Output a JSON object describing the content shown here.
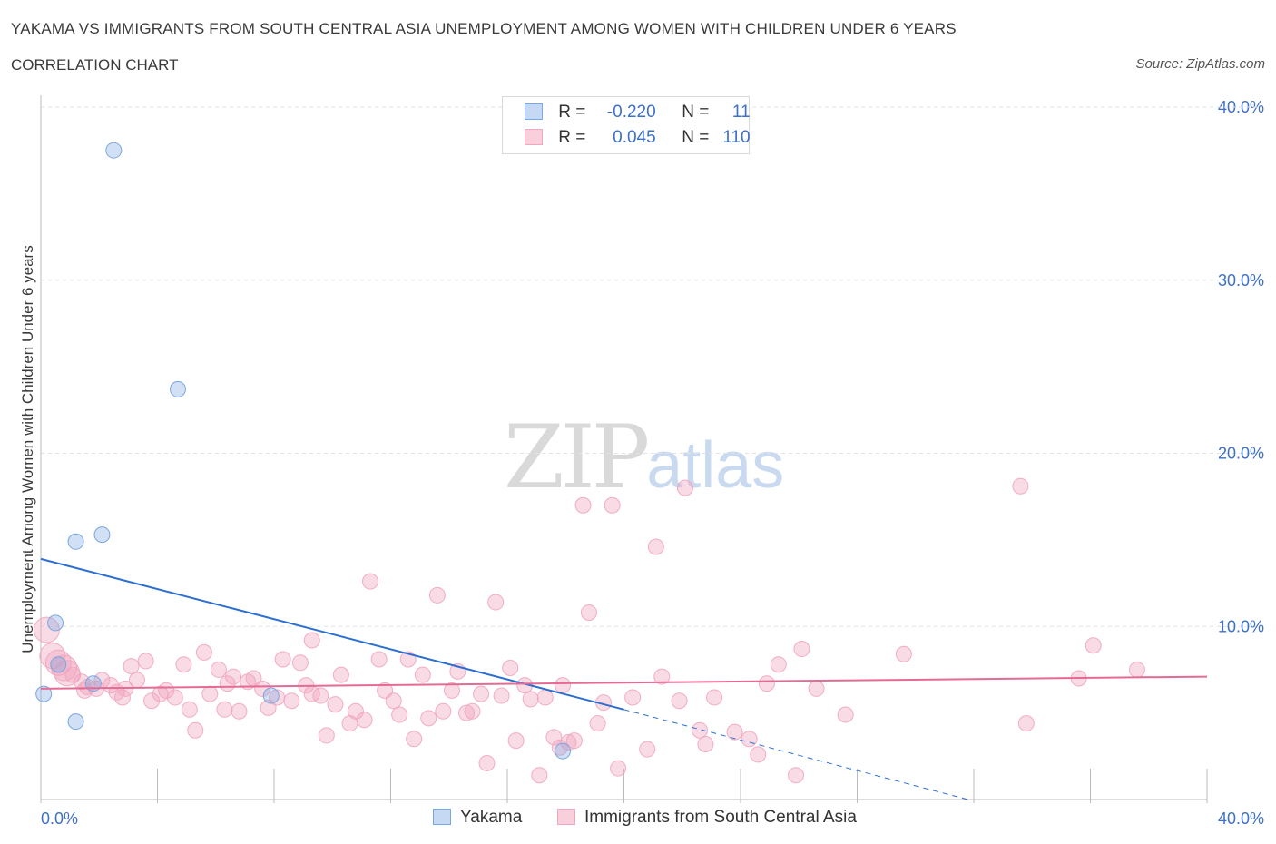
{
  "title": "YAKAMA VS IMMIGRANTS FROM SOUTH CENTRAL ASIA UNEMPLOYMENT AMONG WOMEN WITH CHILDREN UNDER 6 YEARS",
  "subtitle": "CORRELATION CHART",
  "source": "Source: ZipAtlas.com",
  "watermark": {
    "zip": "ZIP",
    "atlas": "atlas"
  },
  "legend": {
    "rows": [
      {
        "r_label": "R =",
        "r_value": "-0.220",
        "n_label": "N =",
        "n_value": "11"
      },
      {
        "r_label": "R =",
        "r_value": "0.045",
        "n_label": "N =",
        "n_value": "110"
      }
    ]
  },
  "chart_data": {
    "type": "scatter",
    "xlabel": "",
    "ylabel": "Unemployment Among Women with Children Under 6 years",
    "xlim": [
      0,
      40
    ],
    "ylim": [
      0,
      40
    ],
    "x_tick_labels": [
      "0.0%",
      "40.0%"
    ],
    "y_ticks": [
      10,
      20,
      30,
      40
    ],
    "y_tick_labels": [
      "10.0%",
      "20.0%",
      "30.0%",
      "40.0%"
    ],
    "grid": true,
    "legend_position": "bottom",
    "colors": {
      "yakama": "#7ba7e0",
      "immigrants": "#f0a6be",
      "yakama_line": "#2c6fd1",
      "immigrants_line": "#e56a95",
      "tick_label": "#3d70c9"
    },
    "series": [
      {
        "name": "Yakama",
        "points": [
          [
            0.1,
            6.1
          ],
          [
            0.5,
            10.2
          ],
          [
            0.6,
            7.8
          ],
          [
            1.2,
            14.9
          ],
          [
            1.2,
            4.5
          ],
          [
            1.8,
            6.7
          ],
          [
            2.1,
            15.3
          ],
          [
            2.5,
            37.5
          ],
          [
            4.7,
            23.7
          ],
          [
            7.9,
            6.0
          ],
          [
            17.9,
            2.8
          ]
        ],
        "trend": {
          "x0": 0,
          "y0": 13.9,
          "x1": 20,
          "y1": 5.2,
          "dash_x1": 31.8,
          "dash_y1": 0
        }
      },
      {
        "name": "Immigrants from South Central Asia",
        "points": [
          [
            0.2,
            9.8
          ],
          [
            0.4,
            8.3
          ],
          [
            0.6,
            7.9
          ],
          [
            0.8,
            7.6
          ],
          [
            1.1,
            7.2
          ],
          [
            1.4,
            6.8
          ],
          [
            1.6,
            6.5
          ],
          [
            1.9,
            6.4
          ],
          [
            2.1,
            6.9
          ],
          [
            2.4,
            6.6
          ],
          [
            2.6,
            6.2
          ],
          [
            2.8,
            5.9
          ],
          [
            3.1,
            7.7
          ],
          [
            3.3,
            6.9
          ],
          [
            3.6,
            8.0
          ],
          [
            3.8,
            5.7
          ],
          [
            4.1,
            6.1
          ],
          [
            4.3,
            6.3
          ],
          [
            4.6,
            5.9
          ],
          [
            4.9,
            7.8
          ],
          [
            5.1,
            5.2
          ],
          [
            5.3,
            4.0
          ],
          [
            5.6,
            8.5
          ],
          [
            5.8,
            6.1
          ],
          [
            6.1,
            7.5
          ],
          [
            6.3,
            5.2
          ],
          [
            6.6,
            7.1
          ],
          [
            6.8,
            5.1
          ],
          [
            7.1,
            6.8
          ],
          [
            7.3,
            7.0
          ],
          [
            7.6,
            6.4
          ],
          [
            7.8,
            5.3
          ],
          [
            8.1,
            5.9
          ],
          [
            8.3,
            8.1
          ],
          [
            8.6,
            5.7
          ],
          [
            8.9,
            7.9
          ],
          [
            9.1,
            6.6
          ],
          [
            9.3,
            9.2
          ],
          [
            9.6,
            6.0
          ],
          [
            9.8,
            3.7
          ],
          [
            10.1,
            5.5
          ],
          [
            10.3,
            7.2
          ],
          [
            10.6,
            4.4
          ],
          [
            10.8,
            5.1
          ],
          [
            11.1,
            4.6
          ],
          [
            11.3,
            12.6
          ],
          [
            11.6,
            8.1
          ],
          [
            11.8,
            6.3
          ],
          [
            12.1,
            5.7
          ],
          [
            12.3,
            4.9
          ],
          [
            12.6,
            8.1
          ],
          [
            12.8,
            3.5
          ],
          [
            13.1,
            7.2
          ],
          [
            13.3,
            4.7
          ],
          [
            13.6,
            11.8
          ],
          [
            13.8,
            5.1
          ],
          [
            14.1,
            6.3
          ],
          [
            14.3,
            7.4
          ],
          [
            14.6,
            5.0
          ],
          [
            14.8,
            5.1
          ],
          [
            15.1,
            6.1
          ],
          [
            15.3,
            2.1
          ],
          [
            15.6,
            11.4
          ],
          [
            15.8,
            6.0
          ],
          [
            16.1,
            7.6
          ],
          [
            16.3,
            3.4
          ],
          [
            16.6,
            6.6
          ],
          [
            16.8,
            5.8
          ],
          [
            17.1,
            1.4
          ],
          [
            17.3,
            5.9
          ],
          [
            17.6,
            3.6
          ],
          [
            17.8,
            3.0
          ],
          [
            17.9,
            6.6
          ],
          [
            18.1,
            3.3
          ],
          [
            18.3,
            3.4
          ],
          [
            18.6,
            17.0
          ],
          [
            18.8,
            10.8
          ],
          [
            19.1,
            4.4
          ],
          [
            19.3,
            5.6
          ],
          [
            19.6,
            17.0
          ],
          [
            19.8,
            1.8
          ],
          [
            20.3,
            5.9
          ],
          [
            20.8,
            2.9
          ],
          [
            21.1,
            14.6
          ],
          [
            21.3,
            7.1
          ],
          [
            21.9,
            5.7
          ],
          [
            22.1,
            18.0
          ],
          [
            22.6,
            4.0
          ],
          [
            22.8,
            3.2
          ],
          [
            23.1,
            5.9
          ],
          [
            23.8,
            3.9
          ],
          [
            24.3,
            3.5
          ],
          [
            24.6,
            2.6
          ],
          [
            24.9,
            6.7
          ],
          [
            25.3,
            7.8
          ],
          [
            25.9,
            1.4
          ],
          [
            26.1,
            8.7
          ],
          [
            26.6,
            6.4
          ],
          [
            27.6,
            4.9
          ],
          [
            29.6,
            8.4
          ],
          [
            33.6,
            18.1
          ],
          [
            33.8,
            4.4
          ],
          [
            35.6,
            7.0
          ],
          [
            36.1,
            8.9
          ],
          [
            37.6,
            7.5
          ],
          [
            9.3,
            6.1
          ],
          [
            6.4,
            6.7
          ],
          [
            2.9,
            6.4
          ],
          [
            1.5,
            6.3
          ],
          [
            0.9,
            7.3
          ]
        ],
        "trend": {
          "x0": 0,
          "y0": 6.4,
          "x1": 40,
          "y1": 7.1
        }
      }
    ]
  }
}
